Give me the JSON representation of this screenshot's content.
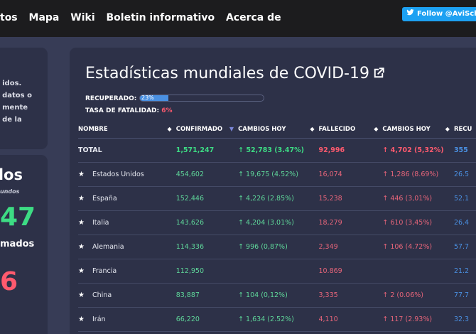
{
  "nav": {
    "items": [
      "tos",
      "Mapa",
      "Wiki",
      "Boletin informativo",
      "Acerca de"
    ],
    "twitter_button": "Follow @AviSchiffmann"
  },
  "left_panel": {
    "card1_lines": [
      "idos.",
      "datos o",
      "mente",
      "de la"
    ],
    "card2_title": "dos",
    "card2_subtitle": "undos",
    "card2_green_number": "47",
    "card2_label": "mados",
    "card2_red_number": "6"
  },
  "main": {
    "title": "Estadísticas mundiales de COVID-19",
    "recovered_label": "RECUPERADO:",
    "recovered_percent": "23%",
    "recovered_fraction": 0.23,
    "fatality_label": "TASA DE FATALIDAD:",
    "fatality_value": "6%",
    "table": {
      "headers": [
        "NOMBRE",
        "CONFIRMADO",
        "CAMBIOS HOY",
        "FALLECIDO",
        "CAMBIOS HOY",
        "RECU"
      ],
      "total": {
        "name": "TOTAL",
        "confirmed": "1,571,247",
        "change": "↑ 52,783 (3.47%)",
        "deaths": "92,996",
        "death_change": "↑ 4,702 (5,32%)",
        "recovered": "355"
      },
      "rows": [
        {
          "name": "Estados Unidos",
          "confirmed": "454,602",
          "change": "↑ 19,675 (4.52%)",
          "deaths": "16,074",
          "death_change": "↑ 1,286 (8.69%)",
          "recovered": "26.5"
        },
        {
          "name": "España",
          "confirmed": "152,446",
          "change": "↑ 4,226 (2.85%)",
          "deaths": "15,238",
          "death_change": "↑ 446 (3,01%)",
          "recovered": "52.1"
        },
        {
          "name": "Italia",
          "confirmed": "143,626",
          "change": "↑ 4,204 (3.01%)",
          "deaths": "18,279",
          "death_change": "↑ 610 (3,45%)",
          "recovered": "26.4"
        },
        {
          "name": "Alemania",
          "confirmed": "114,336",
          "change": "↑ 996 (0,87%)",
          "deaths": "2,349",
          "death_change": "↑ 106 (4.72%)",
          "recovered": "57.7"
        },
        {
          "name": "Francia",
          "confirmed": "112,950",
          "change": "",
          "deaths": "10.869",
          "death_change": "",
          "recovered": "21.2"
        },
        {
          "name": "China",
          "confirmed": "83,887",
          "change": "↑ 104 (0,12%)",
          "deaths": "3,335",
          "death_change": "↑ 2 (0.06%)",
          "recovered": "77.7"
        },
        {
          "name": "Irán",
          "confirmed": "66,220",
          "change": "↑ 1,634 (2.52%)",
          "deaths": "4,110",
          "death_change": "↑ 117 (2.93%)",
          "recovered": "32.3"
        }
      ]
    }
  },
  "colors": {
    "background": "#373c56",
    "card": "#2d3148",
    "green": "#3ddc84",
    "red": "#ff5a6e",
    "blue": "#4a90e2",
    "twitter": "#1da1f2"
  }
}
